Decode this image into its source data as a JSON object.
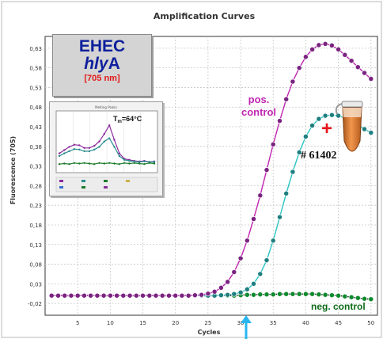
{
  "chart_data": {
    "type": "line",
    "title": "Amplification Curves",
    "xlabel": "Cycles",
    "ylabel": "Fluorescence (705)",
    "xlim": [
      0,
      51
    ],
    "ylim": [
      -0.05,
      0.66
    ],
    "x_ticks": [
      5,
      10,
      15,
      20,
      25,
      30,
      35,
      40,
      45,
      50
    ],
    "y_ticks": [
      -0.02,
      0.03,
      0.08,
      0.13,
      0.18,
      0.23,
      0.28,
      0.33,
      0.38,
      0.43,
      0.48,
      0.53,
      0.58,
      0.63
    ],
    "x_tick_labels": [
      "5",
      "10",
      "15",
      "20",
      "25",
      "30",
      "35",
      "40",
      "45",
      "50"
    ],
    "y_tick_labels": [
      "-0,02",
      "0,03",
      "0,08",
      "0,13",
      "0,18",
      "0,23",
      "0,28",
      "0,33",
      "0,38",
      "0,43",
      "0,48",
      "0,53",
      "0,58",
      "0,63"
    ],
    "grid": true,
    "x": [
      1,
      2,
      3,
      4,
      5,
      6,
      7,
      8,
      9,
      10,
      11,
      12,
      13,
      14,
      15,
      16,
      17,
      18,
      19,
      20,
      21,
      22,
      23,
      24,
      25,
      26,
      27,
      28,
      29,
      30,
      31,
      32,
      33,
      34,
      35,
      36,
      37,
      38,
      39,
      40,
      41,
      42,
      43,
      44,
      45,
      46,
      47,
      48,
      49,
      50
    ],
    "series": [
      {
        "name": "pos. control",
        "color": "#c026b0",
        "marker_color": "#7a2480",
        "values": [
          0.0,
          0.0,
          0.0,
          0.0,
          0.0,
          0.0,
          0.0,
          0.0,
          0.0,
          0.0,
          0.0,
          0.0,
          0.0,
          0.0,
          0.0,
          0.0,
          0.0,
          0.0,
          0.0,
          0.0,
          0.0,
          0.0,
          0.001,
          0.002,
          0.005,
          0.01,
          0.02,
          0.035,
          0.06,
          0.095,
          0.14,
          0.195,
          0.255,
          0.32,
          0.385,
          0.445,
          0.5,
          0.545,
          0.58,
          0.608,
          0.627,
          0.638,
          0.641,
          0.637,
          0.627,
          0.613,
          0.598,
          0.582,
          0.567,
          0.552
        ]
      },
      {
        "name": "# 61402",
        "color": "#2bc4c4",
        "marker_color": "#1f7f7f",
        "values": [
          0.0,
          0.0,
          0.0,
          0.0,
          0.0,
          0.0,
          0.0,
          0.0,
          0.0,
          0.0,
          0.0,
          0.0,
          0.0,
          0.0,
          0.0,
          0.0,
          0.0,
          0.0,
          0.0,
          0.0,
          0.0,
          0.0,
          0.0,
          0.0,
          0.0,
          0.0,
          0.001,
          0.002,
          0.004,
          0.008,
          0.016,
          0.03,
          0.055,
          0.09,
          0.14,
          0.2,
          0.26,
          0.315,
          0.365,
          0.405,
          0.433,
          0.45,
          0.458,
          0.46,
          0.458,
          0.452,
          0.444,
          0.434,
          0.424,
          0.415
        ]
      },
      {
        "name": "neg. control",
        "color": "#1a1a1a",
        "marker_color": "#0f8a2e",
        "values": [
          0.0,
          0.001,
          0.0,
          -0.001,
          0.0,
          0.001,
          0.0,
          0.0,
          -0.001,
          0.0,
          0.001,
          0.0,
          0.0,
          -0.001,
          0.0,
          0.001,
          0.0,
          0.0,
          -0.001,
          0.0,
          0.0,
          0.001,
          0.0,
          0.0,
          -0.001,
          0.0,
          0.001,
          0.0,
          0.0,
          0.001,
          0.002,
          0.002,
          0.003,
          0.003,
          0.003,
          0.004,
          0.004,
          0.004,
          0.004,
          0.004,
          0.004,
          0.003,
          0.002,
          0.001,
          0.0,
          -0.002,
          -0.004,
          -0.006,
          -0.008,
          -0.009
        ]
      }
    ],
    "annotations": {
      "legend_line1": "EHEC",
      "legend_line2a": "hly",
      "legend_line2b": "A",
      "legend_line3": "[705 nm]",
      "pos_line1": "pos.",
      "pos_line2": "control",
      "neg_label": "neg. control",
      "sample_label": "# 61402",
      "plus_sign": "+",
      "cq_arrow_cycle": 30
    },
    "inset": {
      "title": "Melting Peaks",
      "tm_prefix": "T",
      "tm_sub": "m",
      "tm_value": "=64°C",
      "series": [
        {
          "color": "#8b2a9c",
          "values": [
            0.3,
            0.36,
            0.42,
            0.46,
            0.45,
            0.4,
            0.4,
            0.44,
            0.52,
            0.66,
            0.82,
            0.55,
            0.3,
            0.2,
            0.18,
            0.16,
            0.15,
            0.16,
            0.14,
            0.15
          ]
        },
        {
          "color": "#2a8c8c",
          "values": [
            0.25,
            0.3,
            0.34,
            0.38,
            0.37,
            0.34,
            0.34,
            0.37,
            0.42,
            0.52,
            0.58,
            0.42,
            0.25,
            0.18,
            0.16,
            0.15,
            0.14,
            0.15,
            0.14,
            0.14
          ]
        },
        {
          "color": "#1b7a2a",
          "values": [
            0.1,
            0.11,
            0.1,
            0.12,
            0.11,
            0.12,
            0.11,
            0.1,
            0.12,
            0.11,
            0.12,
            0.11,
            0.1,
            0.12,
            0.11,
            0.12,
            0.11,
            0.1,
            0.12,
            0.11
          ]
        }
      ]
    }
  }
}
